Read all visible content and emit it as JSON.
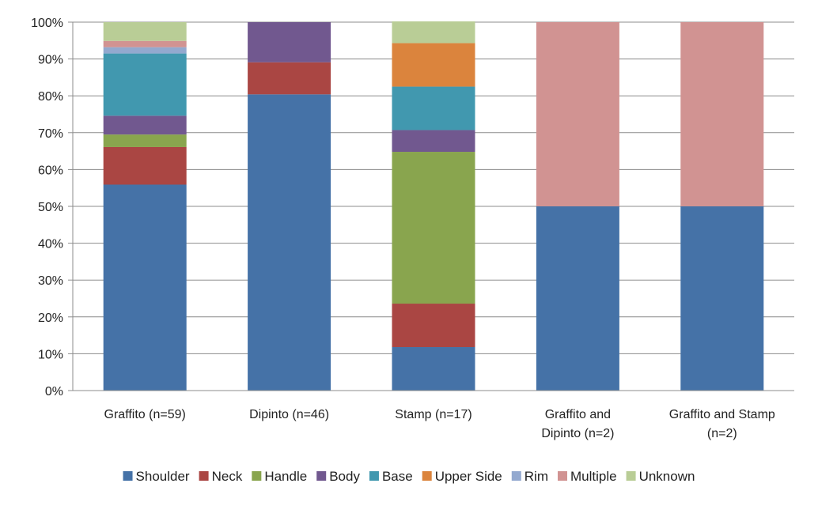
{
  "chart_data": {
    "type": "bar",
    "stacked": true,
    "percent": true,
    "categories": [
      [
        "Graffito (n=59)"
      ],
      [
        "Dipinto (n=46)"
      ],
      [
        "Stamp (n=17)"
      ],
      [
        "Graffito and",
        "Dipinto (n=2)"
      ],
      [
        "Graffito and Stamp",
        "(n=2)"
      ]
    ],
    "series": [
      {
        "name": "Shoulder",
        "color": "#4572A7",
        "values": [
          55.9,
          80.4,
          11.8,
          50,
          50
        ]
      },
      {
        "name": "Neck",
        "color": "#AA4643",
        "values": [
          10.2,
          8.7,
          11.8,
          0,
          0
        ]
      },
      {
        "name": "Handle",
        "color": "#89A54E",
        "values": [
          3.4,
          0,
          41.2,
          0,
          0
        ]
      },
      {
        "name": "Body",
        "color": "#71588F",
        "values": [
          5.1,
          10.9,
          5.9,
          0,
          0
        ]
      },
      {
        "name": "Base",
        "color": "#4198AF",
        "values": [
          16.9,
          0,
          11.8,
          0,
          0
        ]
      },
      {
        "name": "Upper Side",
        "color": "#DB843D",
        "values": [
          0,
          0,
          11.8,
          0,
          0
        ]
      },
      {
        "name": "Rim",
        "color": "#93A9CF",
        "values": [
          1.7,
          0,
          0,
          0,
          0
        ]
      },
      {
        "name": "Multiple",
        "color": "#D19392",
        "values": [
          1.7,
          0,
          0,
          50,
          50
        ]
      },
      {
        "name": "Unknown",
        "color": "#B9CD96",
        "values": [
          5.1,
          0,
          5.9,
          0,
          0
        ]
      }
    ],
    "yticks": [
      "0%",
      "10%",
      "20%",
      "30%",
      "40%",
      "50%",
      "60%",
      "70%",
      "80%",
      "90%",
      "100%"
    ],
    "ylim": [
      0,
      100
    ],
    "grid": true,
    "legend_position": "bottom"
  }
}
